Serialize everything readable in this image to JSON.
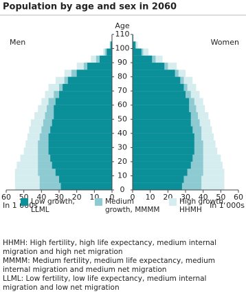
{
  "chart_data": {
    "type": "population-pyramid",
    "title": "Population by age and sex in 2060",
    "y_label": "Age",
    "x_label": "In 1 000s",
    "left_label": "Men",
    "right_label": "Women",
    "y": [
      0,
      5,
      10,
      15,
      20,
      25,
      30,
      35,
      40,
      45,
      50,
      55,
      60,
      65,
      70,
      75,
      80,
      85,
      90,
      95,
      100,
      105
    ],
    "ylim": [
      0,
      110
    ],
    "yticks": [
      0,
      10,
      20,
      30,
      40,
      50,
      60,
      70,
      80,
      90,
      100,
      110
    ],
    "xlim": [
      0,
      60
    ],
    "xticks": [
      0,
      10,
      20,
      30,
      40,
      50,
      60
    ],
    "series": [
      {
        "name": "High growth, HHMH",
        "color": "#d6edf0",
        "men": [
          55,
          55,
          55,
          54,
          52,
          50,
          49,
          48,
          47,
          46,
          44,
          42,
          40,
          38,
          36,
          32,
          27,
          20,
          12,
          5,
          1.5,
          0.3
        ],
        "women": [
          52,
          52,
          52,
          51,
          50,
          48,
          47,
          46,
          45,
          44,
          43,
          41,
          40,
          38,
          36,
          34,
          30,
          25,
          17,
          9,
          3,
          0.6
        ]
      },
      {
        "name": "Medium growth, MMMM",
        "color": "#8dcad2",
        "men": [
          41,
          41,
          42,
          42,
          42,
          42,
          42,
          41,
          40,
          39,
          38,
          37,
          36,
          33,
          30,
          27,
          23,
          16,
          9,
          4,
          1,
          0.2
        ],
        "women": [
          39,
          39,
          40,
          40,
          40,
          40,
          40,
          39,
          39,
          38,
          37,
          36,
          35,
          33,
          31,
          29,
          26,
          20,
          13,
          6,
          2,
          0.4
        ]
      },
      {
        "name": "Low growth, LLML",
        "color": "#0b8f99",
        "men": [
          29,
          30,
          32,
          34,
          35,
          36,
          36,
          36,
          35,
          34,
          33,
          33,
          32,
          30,
          28,
          25,
          20,
          14,
          7,
          3,
          0.8,
          0.1
        ],
        "women": [
          28,
          29,
          31,
          33,
          34,
          35,
          35,
          35,
          34,
          33,
          33,
          32,
          32,
          30,
          29,
          27,
          24,
          18,
          11,
          5,
          1.5,
          0.3
        ]
      }
    ],
    "legend_order": [
      2,
      1,
      0
    ],
    "notes": [
      "HHMH: High fertility, high life expectancy, medium internal migration and high net migration",
      "MMMM: Medium fertility, medium life expectancy, medium internal migration and medium net migration",
      "LLML: Low fertility, low life expectancy, medium internal migration and low net migration"
    ]
  }
}
